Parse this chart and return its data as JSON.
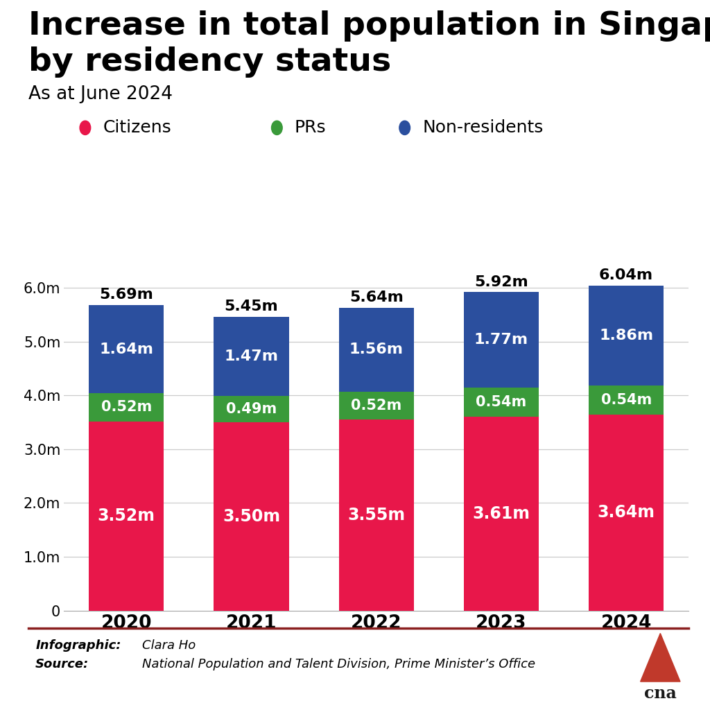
{
  "title_line1": "Increase in total population in Singapore",
  "title_line2": "by residency status",
  "subtitle": "As at June 2024",
  "years": [
    "2020",
    "2021",
    "2022",
    "2023",
    "2024"
  ],
  "citizens": [
    3.52,
    3.5,
    3.55,
    3.61,
    3.64
  ],
  "prs": [
    0.52,
    0.49,
    0.52,
    0.54,
    0.54
  ],
  "non_residents": [
    1.64,
    1.47,
    1.56,
    1.77,
    1.86
  ],
  "citizen_labels": [
    "3.52m",
    "3.50m",
    "3.55m",
    "3.61m",
    "3.64m"
  ],
  "pr_labels": [
    "0.52m",
    "0.49m",
    "0.52m",
    "0.54m",
    "0.54m"
  ],
  "nr_labels": [
    "1.64m",
    "1.47m",
    "1.56m",
    "1.77m",
    "1.86m"
  ],
  "total_labels": [
    "5.69m",
    "5.45m",
    "5.64m",
    "5.92m",
    "6.04m"
  ],
  "citizen_color": "#E8174A",
  "pr_color": "#3A9A3A",
  "nr_color": "#2B4F9E",
  "background_color": "#FFFFFF",
  "ylim": [
    0,
    6.6
  ],
  "yticks": [
    0,
    1.0,
    2.0,
    3.0,
    4.0,
    5.0,
    6.0
  ],
  "ytick_labels": [
    "0",
    "1.0m",
    "2.0m",
    "3.0m",
    "4.0m",
    "5.0m",
    "6.0m"
  ],
  "infographic_label": "Infographic:",
  "infographic_name": "Clara Ho",
  "source_label": "Source:",
  "source_name": "National Population and Talent Division, Prime Minister’s Office",
  "footer_line_color": "#8B2020",
  "bar_width": 0.6,
  "legend_items": [
    "Citizens",
    "PRs",
    "Non-residents"
  ],
  "legend_colors": [
    "#E8174A",
    "#3A9A3A",
    "#2B4F9E"
  ]
}
